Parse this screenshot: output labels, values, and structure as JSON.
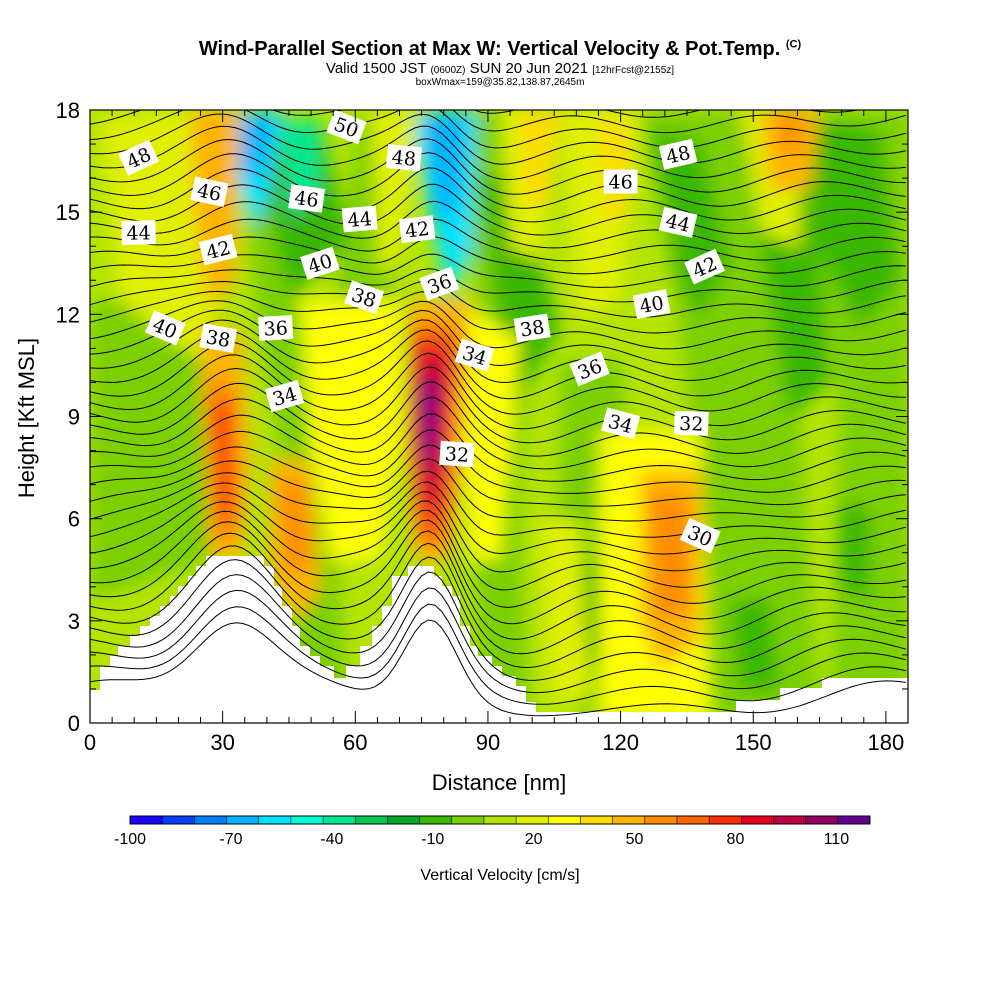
{
  "title": {
    "main": "Wind-Parallel Section at Max W: Vertical Velocity & Pot.Temp.",
    "copyright": "(C)",
    "valid_a": "Valid 1500 JST ",
    "valid_z": "(0600Z)",
    "valid_b": " SUN 20 Jun 2021 ",
    "valid_fcst": "[12hrFcst@2155z]",
    "boxline": "boxWmax=159@35.82,138.87,2645m"
  },
  "chart_data": {
    "type": "heatmap",
    "xlabel": "Distance [nm]",
    "ylabel": "Height [Kft MSL]",
    "xlim": [
      0,
      185
    ],
    "ylim": [
      0,
      18
    ],
    "x_ticks": [
      "0",
      "30",
      "60",
      "90",
      "120",
      "150",
      "180"
    ],
    "y_ticks": [
      "0",
      "3",
      "6",
      "9",
      "12",
      "15",
      "18"
    ],
    "colorbar": {
      "label": "Vertical Velocity [cm/s]",
      "tick_labels": [
        "-100",
        "-70",
        "-40",
        "-10",
        "20",
        "50",
        "80",
        "110"
      ],
      "tick_values": [
        -100,
        -70,
        -40,
        -10,
        20,
        50,
        80,
        110
      ],
      "range": [
        -100,
        120
      ],
      "colors": [
        "#1a00ff",
        "#0040ff",
        "#0080ff",
        "#00b4ff",
        "#00e4ff",
        "#00ffd0",
        "#00e890",
        "#00c850",
        "#00a828",
        "#38b800",
        "#7cd000",
        "#b4e400",
        "#e0f000",
        "#ffff00",
        "#ffdc00",
        "#ffb400",
        "#ff8c00",
        "#ff6400",
        "#ff3000",
        "#e80020",
        "#c00040",
        "#900060",
        "#600090"
      ]
    },
    "contour_labels": [
      {
        "text": "48",
        "x": 11,
        "y": 16.6
      },
      {
        "text": "46",
        "x": 27,
        "y": 15.6
      },
      {
        "text": "44",
        "x": 11,
        "y": 14.4
      },
      {
        "text": "42",
        "x": 29,
        "y": 13.9
      },
      {
        "text": "40",
        "x": 17,
        "y": 11.6
      },
      {
        "text": "38",
        "x": 29,
        "y": 11.3
      },
      {
        "text": "36",
        "x": 42,
        "y": 11.6
      },
      {
        "text": "34",
        "x": 44,
        "y": 9.6
      },
      {
        "text": "50",
        "x": 58,
        "y": 17.5
      },
      {
        "text": "46",
        "x": 49,
        "y": 15.4
      },
      {
        "text": "44",
        "x": 61,
        "y": 14.8
      },
      {
        "text": "40",
        "x": 52,
        "y": 13.5
      },
      {
        "text": "38",
        "x": 62,
        "y": 12.5
      },
      {
        "text": "48",
        "x": 71,
        "y": 16.6
      },
      {
        "text": "42",
        "x": 74,
        "y": 14.5
      },
      {
        "text": "36",
        "x": 79,
        "y": 12.9
      },
      {
        "text": "34",
        "x": 87,
        "y": 10.8
      },
      {
        "text": "32",
        "x": 83,
        "y": 7.9
      },
      {
        "text": "38",
        "x": 100,
        "y": 11.6
      },
      {
        "text": "36",
        "x": 113,
        "y": 10.4
      },
      {
        "text": "34",
        "x": 120,
        "y": 8.8
      },
      {
        "text": "32",
        "x": 136,
        "y": 8.8
      },
      {
        "text": "40",
        "x": 127,
        "y": 12.3
      },
      {
        "text": "42",
        "x": 139,
        "y": 13.4
      },
      {
        "text": "44",
        "x": 133,
        "y": 14.7
      },
      {
        "text": "46",
        "x": 120,
        "y": 15.9
      },
      {
        "text": "48",
        "x": 133,
        "y": 16.7
      },
      {
        "text": "30",
        "x": 138,
        "y": 5.5
      }
    ]
  }
}
